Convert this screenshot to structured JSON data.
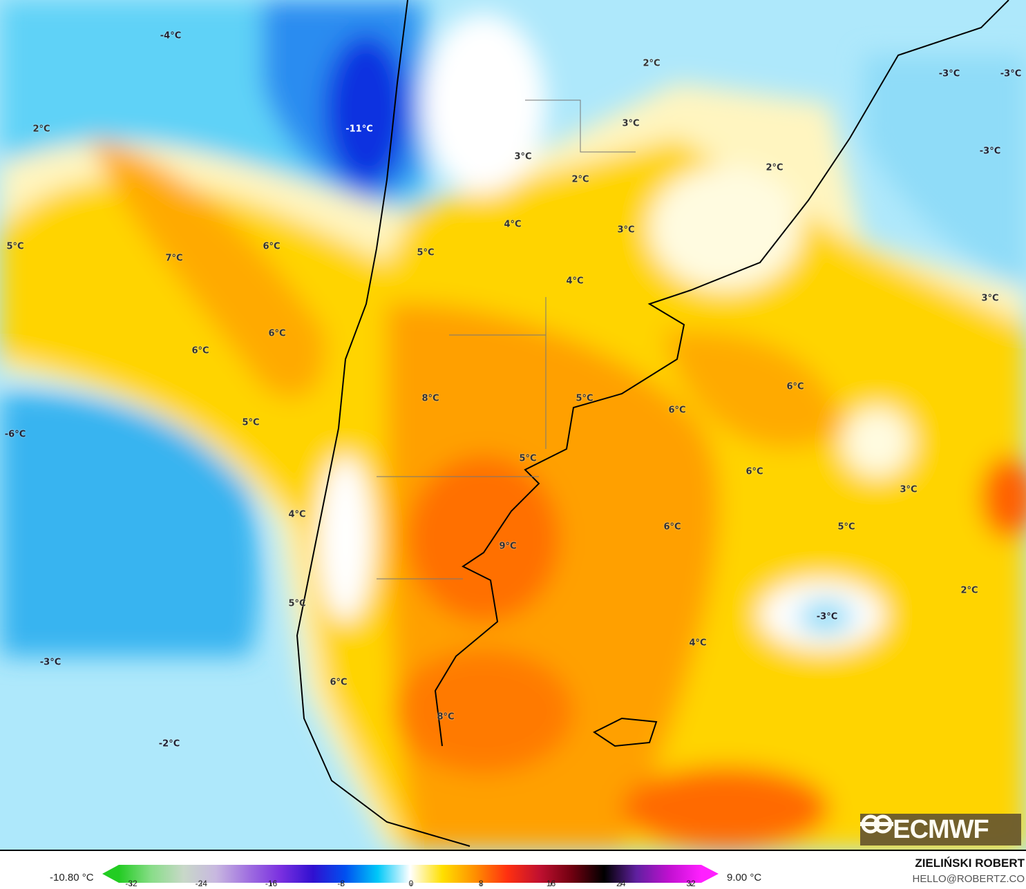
{
  "map": {
    "variable_unit": "°C",
    "labels": [
      "-4°C",
      "2°C",
      "-3°C",
      "-3°C",
      "2°C",
      "-11°C",
      "3°C",
      "-3°C",
      "3°C",
      "2°C",
      "2°C",
      "4°C",
      "3°C",
      "5°C",
      "6°C",
      "7°C",
      "5°C",
      "4°C",
      "3°C",
      "6°C",
      "6°C",
      "6°C",
      "5°C",
      "8°C",
      "6°C",
      "-6°C",
      "5°C",
      "5°C",
      "6°C",
      "3°C",
      "4°C",
      "6°C",
      "5°C",
      "9°C",
      "2°C",
      "5°C",
      "-3°C",
      "4°C",
      "-3°C",
      "6°C",
      "8°C",
      "-2°C"
    ]
  },
  "logo": {
    "text": "ECMWF"
  },
  "colorbar": {
    "min_label": "-10.80 °C",
    "max_label": "9.00 °C",
    "ticks": [
      "-32",
      "-24",
      "-16",
      "-8",
      "0",
      "8",
      "16",
      "24",
      "32"
    ],
    "colors": [
      "#22cc22",
      "#88dd88",
      "#c8d8c8",
      "#c8b8e0",
      "#a070e0",
      "#7a30e0",
      "#3010d0",
      "#0050f0",
      "#00c8f8",
      "#ffffff",
      "#ffe000",
      "#ff9000",
      "#ff3010",
      "#c01030",
      "#700010",
      "#000000",
      "#6020a0",
      "#c010d0",
      "#ff20ff"
    ]
  },
  "credit": {
    "author": "ZIELIŃSKI ROBERT",
    "email": "HELLO@ROBERTZ.CO"
  }
}
